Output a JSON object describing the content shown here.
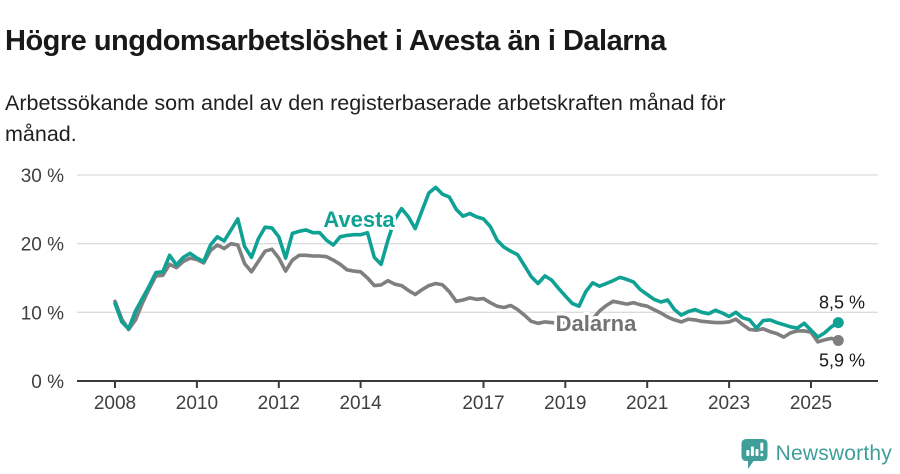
{
  "header": {
    "title": "Högre ungdomsarbetslöshet i Avesta än i Dalarna",
    "subtitle": "Arbetssökande som andel av den registerbaserade arbetskraften månad för\nmånad."
  },
  "chart_data": {
    "type": "line",
    "title": "Högre ungdomsarbetslöshet i Avesta än i Dalarna",
    "subtitle": "Arbetssökande som andel av den registerbaserade arbetskraften månad för månad.",
    "unit": "%",
    "x_start_year": 2008,
    "points_per_year": 6,
    "x_range": [
      2008.0,
      2025.67
    ],
    "ylim": [
      0,
      30
    ],
    "grid": true,
    "legend": "inline-labels",
    "y_ticks": [
      {
        "value": 30,
        "label": "30 %"
      },
      {
        "value": 20,
        "label": "20 %"
      },
      {
        "value": 10,
        "label": "10 %"
      },
      {
        "value": 0,
        "label": "0 %"
      }
    ],
    "x_ticks": [
      {
        "value": 2008,
        "label": "2008"
      },
      {
        "value": 2010,
        "label": "2010"
      },
      {
        "value": 2012,
        "label": "2012"
      },
      {
        "value": 2014,
        "label": "2014"
      },
      {
        "value": 2017,
        "label": "2017"
      },
      {
        "value": 2019,
        "label": "2019"
      },
      {
        "value": 2021,
        "label": "2021"
      },
      {
        "value": 2023,
        "label": "2023"
      },
      {
        "value": 2025,
        "label": "2025"
      }
    ],
    "series": [
      {
        "name": "Avesta",
        "color": "#0FA294",
        "end_label": "8,5 %",
        "end_value": 8.5,
        "values": [
          11.3,
          8.6,
          7.6,
          10.2,
          12.0,
          13.8,
          15.8,
          15.9,
          18.3,
          16.9,
          18.0,
          18.6,
          17.9,
          17.4,
          19.8,
          21.0,
          20.4,
          22.0,
          23.6,
          19.6,
          18.0,
          20.7,
          22.4,
          22.3,
          21.0,
          17.9,
          21.5,
          21.8,
          22.0,
          21.6,
          21.6,
          20.5,
          19.8,
          21.0,
          21.2,
          21.3,
          21.3,
          21.6,
          18.0,
          17.0,
          20.5,
          23.5,
          25.1,
          23.9,
          22.2,
          24.8,
          27.4,
          28.2,
          27.2,
          26.8,
          25.0,
          24.0,
          24.4,
          23.9,
          23.6,
          22.5,
          20.5,
          19.5,
          18.9,
          18.4,
          16.8,
          15.2,
          14.2,
          15.3,
          14.7,
          13.5,
          12.4,
          11.3,
          10.9,
          13.0,
          14.3,
          13.8,
          14.2,
          14.6,
          15.1,
          14.8,
          14.4,
          13.3,
          12.6,
          11.9,
          11.5,
          11.8,
          10.4,
          9.6,
          10.1,
          10.4,
          10.0,
          9.8,
          10.3,
          9.9,
          9.4,
          10.0,
          9.2,
          8.9,
          7.7,
          8.8,
          8.9,
          8.5,
          8.2,
          7.9,
          7.7,
          8.4,
          7.4,
          6.4,
          7.0,
          7.9,
          8.5
        ]
      },
      {
        "name": "Dalarna",
        "color": "#7F7F7F",
        "label_color": "#737373",
        "end_label": "5,9 %",
        "end_value": 5.9,
        "values": [
          11.6,
          9.0,
          7.5,
          8.9,
          11.3,
          13.4,
          15.3,
          15.4,
          17.0,
          16.5,
          17.4,
          17.9,
          17.7,
          17.2,
          19.0,
          19.8,
          19.3,
          20.0,
          19.8,
          17.1,
          15.9,
          17.4,
          18.9,
          19.2,
          17.9,
          16.0,
          17.6,
          18.3,
          18.3,
          18.2,
          18.2,
          18.1,
          17.6,
          17.0,
          16.2,
          16.0,
          15.9,
          15.0,
          13.9,
          14.0,
          14.6,
          14.1,
          13.9,
          13.2,
          12.6,
          13.3,
          13.9,
          14.2,
          14.0,
          13.0,
          11.6,
          11.8,
          12.1,
          11.9,
          12.0,
          11.4,
          10.9,
          10.7,
          11.0,
          10.4,
          9.6,
          8.7,
          8.4,
          8.6,
          8.5,
          8.4,
          8.5,
          8.3,
          8.2,
          8.6,
          9.0,
          10.2,
          11.0,
          11.6,
          11.4,
          11.2,
          11.4,
          11.1,
          10.9,
          10.4,
          9.9,
          9.3,
          8.9,
          8.6,
          9.0,
          8.9,
          8.7,
          8.6,
          8.5,
          8.5,
          8.6,
          9.0,
          8.2,
          7.5,
          7.4,
          7.6,
          7.2,
          6.9,
          6.4,
          7.0,
          7.3,
          7.3,
          7.1,
          5.7,
          6.0,
          6.2,
          5.9
        ]
      }
    ]
  },
  "footer": {
    "brand": "Newsworthy",
    "brand_color": "#3F9E98",
    "logo_icon": "newsworthy-speech-bubble-bar-chart-icon"
  }
}
